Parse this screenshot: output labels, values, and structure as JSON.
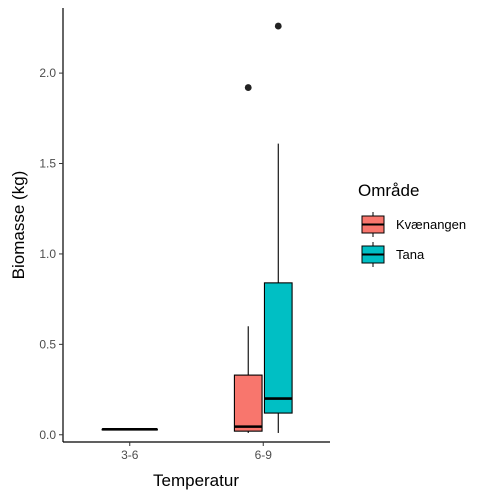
{
  "chart_data": {
    "type": "boxplot",
    "title": "",
    "xlabel": "Temperatur",
    "ylabel": "Biomasse (kg)",
    "categories": [
      "3-6",
      "6-9"
    ],
    "ylim": [
      -0.04,
      2.36
    ],
    "yticks": [
      0.0,
      0.5,
      1.0,
      1.5,
      2.0
    ],
    "ytick_labels": [
      "0.0",
      "0.5",
      "1.0",
      "1.5",
      "2.0"
    ],
    "grid": false,
    "legend": {
      "title": "Område",
      "placement": "right",
      "entries": [
        {
          "name": "Kvænangen",
          "color": "#F8766D"
        },
        {
          "name": "Tana",
          "color": "#00BFC4"
        }
      ]
    },
    "series": [
      {
        "name": "Kvænangen",
        "color": "#F8766D",
        "boxes": [
          null,
          {
            "category": "6-9",
            "min": 0.01,
            "q1": 0.02,
            "median": 0.045,
            "q3": 0.33,
            "max": 0.6,
            "outliers": [
              1.92
            ]
          }
        ]
      },
      {
        "name": "Tana",
        "color": "#00BFC4",
        "boxes": [
          {
            "category": "3-6",
            "min": 0.03,
            "q1": 0.03,
            "median": 0.03,
            "q3": 0.03,
            "max": 0.03,
            "outliers": []
          },
          {
            "category": "6-9",
            "min": 0.01,
            "q1": 0.12,
            "median": 0.2,
            "q3": 0.84,
            "max": 1.61,
            "outliers": [
              2.26
            ]
          }
        ]
      }
    ]
  }
}
